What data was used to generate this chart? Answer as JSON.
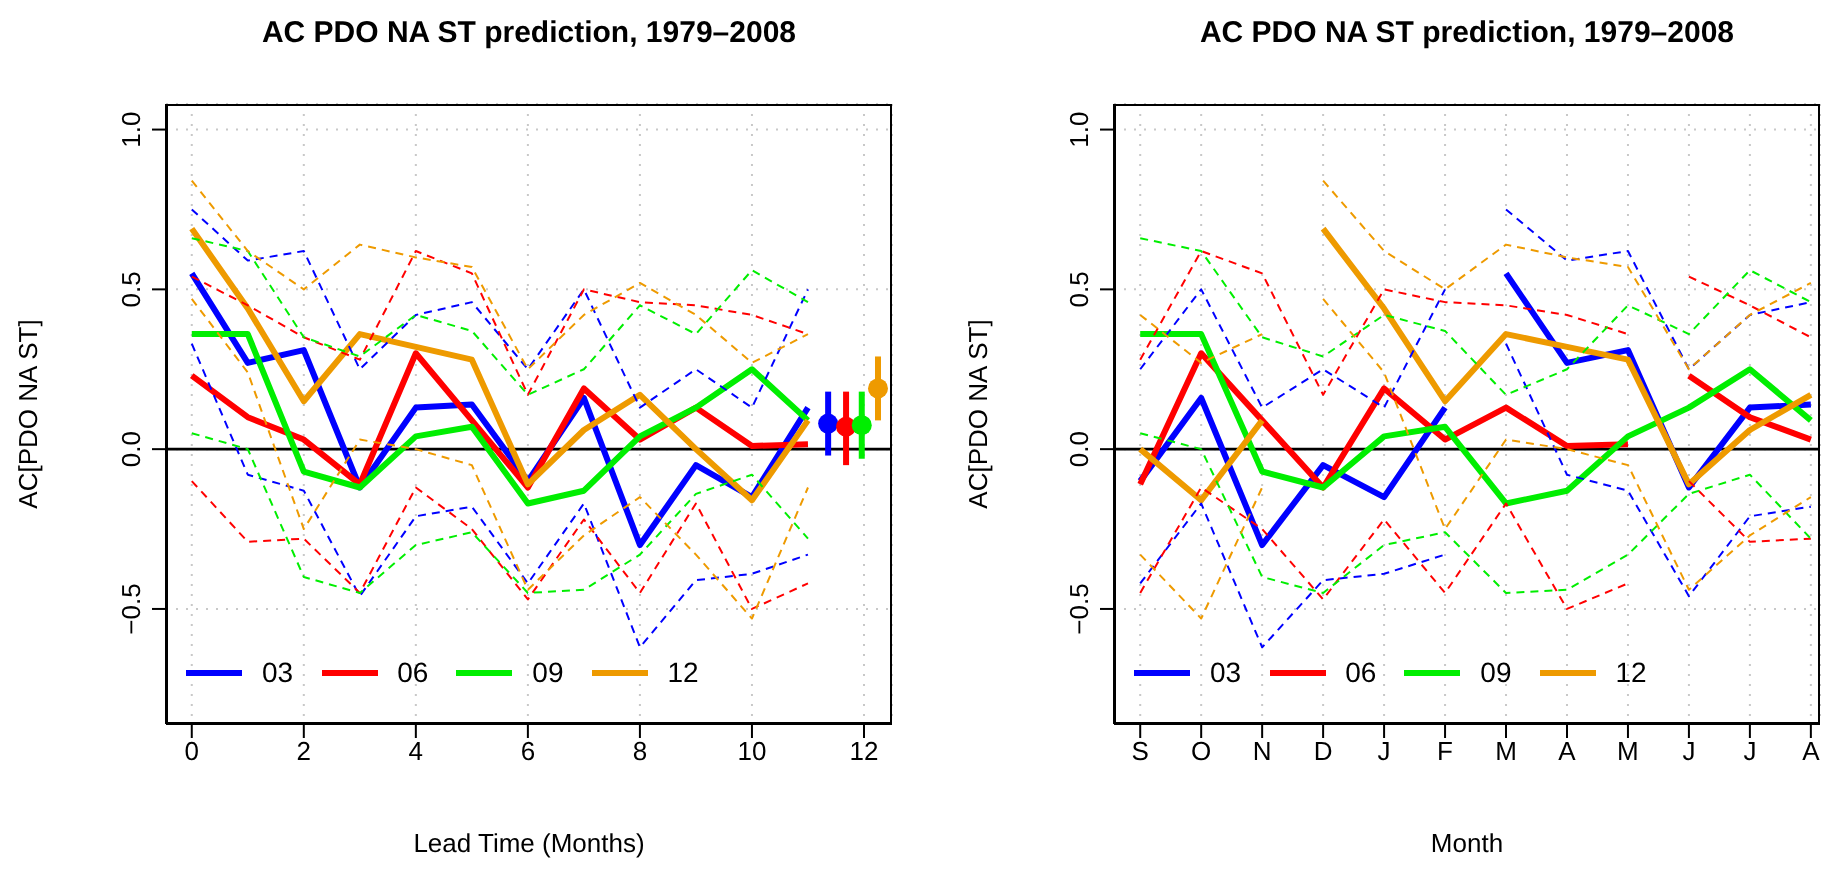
{
  "chart_data": [
    {
      "type": "line",
      "title": "AC PDO NA ST prediction, 1979–2008",
      "xlabel": "Lead Time (Months)",
      "ylabel": "AC[PDO NA ST]",
      "x": [
        0,
        1,
        2,
        3,
        4,
        5,
        6,
        7,
        8,
        9,
        10,
        11
      ],
      "xlim": [
        -0.46,
        12.5
      ],
      "xticks": [
        0,
        2,
        4,
        6,
        8,
        10,
        12
      ],
      "ylim": [
        -0.86,
        1.08
      ],
      "yticks": [
        {
          "value": -0.5,
          "label": "−0.5"
        },
        {
          "value": 0,
          "label": "0.0"
        },
        {
          "value": 0.5,
          "label": "0.5"
        },
        {
          "value": 1,
          "label": "1.0"
        }
      ],
      "grid": true,
      "legend": "bottom left",
      "marker": "none",
      "ref_lines": [
        {
          "axis": "y",
          "value": 0
        }
      ],
      "series": [
        {
          "color": "#0000ff",
          "line_style": "dashed",
          "values": [
            0.33,
            -0.08,
            -0.13,
            -0.46,
            -0.21,
            -0.18,
            -0.42,
            -0.17,
            -0.62,
            -0.41,
            -0.39,
            -0.33
          ]
        },
        {
          "color": "#0000ff",
          "line_style": "dashed",
          "values": [
            0.75,
            0.59,
            0.62,
            0.25,
            0.42,
            0.46,
            0.25,
            0.5,
            0.13,
            0.25,
            0.13,
            0.5
          ]
        },
        {
          "color": "#ff0000",
          "line_style": "dashed",
          "values": [
            -0.1,
            -0.29,
            -0.28,
            -0.45,
            -0.12,
            -0.25,
            -0.47,
            -0.22,
            -0.45,
            -0.17,
            -0.5,
            -0.42
          ]
        },
        {
          "color": "#ff0000",
          "line_style": "dashed",
          "values": [
            0.54,
            0.45,
            0.35,
            0.28,
            0.62,
            0.55,
            0.17,
            0.5,
            0.46,
            0.45,
            0.42,
            0.36
          ]
        },
        {
          "color": "#00ee00",
          "line_style": "dashed",
          "values": [
            0.05,
            0.0,
            -0.4,
            -0.45,
            -0.3,
            -0.26,
            -0.45,
            -0.44,
            -0.33,
            -0.14,
            -0.08,
            -0.28
          ]
        },
        {
          "color": "#00ee00",
          "line_style": "dashed",
          "values": [
            0.66,
            0.62,
            0.35,
            0.29,
            0.42,
            0.37,
            0.17,
            0.25,
            0.45,
            0.36,
            0.56,
            0.46
          ]
        },
        {
          "color": "#ee9a00",
          "line_style": "dashed",
          "values": [
            0.47,
            0.24,
            -0.25,
            0.03,
            0.0,
            -0.05,
            -0.44,
            -0.27,
            -0.15,
            -0.33,
            -0.53,
            -0.12
          ]
        },
        {
          "color": "#ee9a00",
          "line_style": "dashed",
          "values": [
            0.84,
            0.62,
            0.5,
            0.64,
            0.6,
            0.57,
            0.25,
            0.42,
            0.52,
            0.42,
            0.27,
            0.36
          ]
        },
        {
          "name": "03",
          "color": "#0000ff",
          "values": [
            0.55,
            0.27,
            0.31,
            -0.12,
            0.13,
            0.14,
            -0.1,
            0.16,
            -0.3,
            -0.05,
            -0.15,
            0.13
          ]
        },
        {
          "name": "06",
          "color": "#ff0000",
          "values": [
            0.23,
            0.1,
            0.03,
            -0.11,
            0.3,
            0.09,
            -0.12,
            0.19,
            0.03,
            0.13,
            0.01,
            0.015
          ]
        },
        {
          "name": "09",
          "color": "#00ee00",
          "values": [
            0.36,
            0.36,
            -0.07,
            -0.12,
            0.04,
            0.07,
            -0.17,
            -0.13,
            0.04,
            0.13,
            0.25,
            0.09
          ]
        },
        {
          "name": "12",
          "color": "#ee9a00",
          "values": [
            0.69,
            0.44,
            0.15,
            0.36,
            0.32,
            0.28,
            -0.11,
            0.06,
            0.17,
            0.0,
            -0.16,
            0.09
          ]
        },
        {
          "type": "scatter",
          "marker": "circle",
          "x": [
            11.36,
            11.68,
            11.96,
            12.25
          ],
          "values": [
            0.08,
            0.07,
            0.075,
            0.19
          ],
          "colors": [
            "#0000ff",
            "#ff0000",
            "#00ee00",
            "#ee9a00"
          ],
          "errors": [
            [
              -0.02,
              0.18
            ],
            [
              -0.05,
              0.18
            ],
            [
              -0.03,
              0.18
            ],
            [
              0.09,
              0.29
            ]
          ]
        }
      ]
    },
    {
      "type": "line",
      "title": "AC PDO NA ST prediction, 1979–2008",
      "xlabel": "Month",
      "ylabel": "AC[PDO NA ST]",
      "categories": [
        "S",
        "O",
        "N",
        "D",
        "J",
        "F",
        "M",
        "A",
        "M",
        "J",
        "J",
        "A"
      ],
      "ylim": [
        -0.86,
        1.08
      ],
      "yticks": [
        {
          "value": -0.5,
          "label": "−0.5"
        },
        {
          "value": 0,
          "label": "0.0"
        },
        {
          "value": 0.5,
          "label": "0.5"
        },
        {
          "value": 1,
          "label": "1.0"
        }
      ],
      "grid": true,
      "legend": "bottom left",
      "marker": "none",
      "ref_lines": [
        {
          "axis": "y",
          "value": 0
        }
      ],
      "series": [
        {
          "color": "#0000ff",
          "line_style": "dashed",
          "values": [
            null,
            null,
            null,
            null,
            null,
            null,
            0.33,
            -0.08,
            -0.13,
            -0.46,
            -0.21,
            -0.18
          ]
        },
        {
          "color": "#0000ff",
          "line_style": "dashed",
          "values": [
            null,
            null,
            null,
            null,
            null,
            null,
            0.75,
            0.59,
            0.62,
            0.25,
            0.42,
            0.46
          ]
        },
        {
          "color": "#0000ff",
          "line_style": "dashed",
          "values": [
            -0.42,
            -0.17,
            -0.62,
            -0.41,
            -0.39,
            -0.33,
            null,
            null,
            null,
            null,
            null,
            null
          ]
        },
        {
          "color": "#0000ff",
          "line_style": "dashed",
          "values": [
            0.25,
            0.5,
            0.13,
            0.25,
            0.13,
            0.5,
            null,
            null,
            null,
            null,
            null,
            null
          ]
        },
        {
          "color": "#ff0000",
          "line_style": "dashed",
          "values": [
            null,
            null,
            null,
            null,
            null,
            null,
            null,
            null,
            null,
            -0.1,
            -0.29,
            -0.28
          ]
        },
        {
          "color": "#ff0000",
          "line_style": "dashed",
          "values": [
            null,
            null,
            null,
            null,
            null,
            null,
            null,
            null,
            null,
            0.54,
            0.45,
            0.35
          ]
        },
        {
          "color": "#ff0000",
          "line_style": "dashed",
          "values": [
            -0.45,
            -0.12,
            -0.25,
            -0.47,
            -0.22,
            -0.45,
            -0.17,
            -0.5,
            -0.42,
            null,
            null,
            null
          ]
        },
        {
          "color": "#ff0000",
          "line_style": "dashed",
          "values": [
            0.28,
            0.62,
            0.55,
            0.17,
            0.5,
            0.46,
            0.45,
            0.42,
            0.36,
            null,
            null,
            null
          ]
        },
        {
          "color": "#00ee00",
          "line_style": "dashed",
          "values": [
            0.05,
            0.0,
            -0.4,
            -0.45,
            -0.3,
            -0.26,
            -0.45,
            -0.44,
            -0.33,
            -0.14,
            -0.08,
            -0.28
          ]
        },
        {
          "color": "#00ee00",
          "line_style": "dashed",
          "values": [
            0.66,
            0.62,
            0.35,
            0.29,
            0.42,
            0.37,
            0.17,
            0.25,
            0.45,
            0.36,
            0.56,
            0.46
          ]
        },
        {
          "color": "#ee9a00",
          "line_style": "dashed",
          "values": [
            null,
            null,
            null,
            0.47,
            0.24,
            -0.25,
            0.03,
            0.0,
            -0.05,
            -0.44,
            -0.27,
            -0.15
          ]
        },
        {
          "color": "#ee9a00",
          "line_style": "dashed",
          "values": [
            null,
            null,
            null,
            0.84,
            0.62,
            0.5,
            0.64,
            0.6,
            0.57,
            0.25,
            0.42,
            0.52
          ]
        },
        {
          "color": "#ee9a00",
          "line_style": "dashed",
          "values": [
            -0.33,
            -0.53,
            -0.12,
            null,
            null,
            null,
            null,
            null,
            null,
            null,
            null,
            null
          ]
        },
        {
          "color": "#ee9a00",
          "line_style": "dashed",
          "values": [
            0.42,
            0.27,
            0.36,
            null,
            null,
            null,
            null,
            null,
            null,
            null,
            null,
            null
          ]
        },
        {
          "name": "03",
          "color": "#0000ff",
          "values": [
            null,
            null,
            null,
            null,
            null,
            null,
            0.55,
            0.27,
            0.31,
            -0.12,
            0.13,
            0.14
          ]
        },
        {
          "color": "#0000ff",
          "values": [
            -0.1,
            0.16,
            -0.3,
            -0.05,
            -0.15,
            0.13,
            null,
            null,
            null,
            null,
            null,
            null
          ]
        },
        {
          "name": "06",
          "color": "#ff0000",
          "values": [
            null,
            null,
            null,
            null,
            null,
            null,
            null,
            null,
            null,
            0.23,
            0.1,
            0.03
          ]
        },
        {
          "color": "#ff0000",
          "values": [
            -0.11,
            0.3,
            0.09,
            -0.12,
            0.19,
            0.03,
            0.13,
            0.01,
            0.015,
            null,
            null,
            null
          ]
        },
        {
          "name": "09",
          "color": "#00ee00",
          "values": [
            0.36,
            0.36,
            -0.07,
            -0.12,
            0.04,
            0.07,
            -0.17,
            -0.13,
            0.04,
            0.13,
            0.25,
            0.09
          ]
        },
        {
          "name": "12",
          "color": "#ee9a00",
          "values": [
            null,
            null,
            null,
            0.69,
            0.44,
            0.15,
            0.36,
            0.32,
            0.28,
            -0.11,
            0.06,
            0.17
          ]
        },
        {
          "color": "#ee9a00",
          "values": [
            0.0,
            -0.16,
            0.09,
            null,
            null,
            null,
            null,
            null,
            null,
            null,
            null,
            null
          ]
        }
      ]
    }
  ]
}
